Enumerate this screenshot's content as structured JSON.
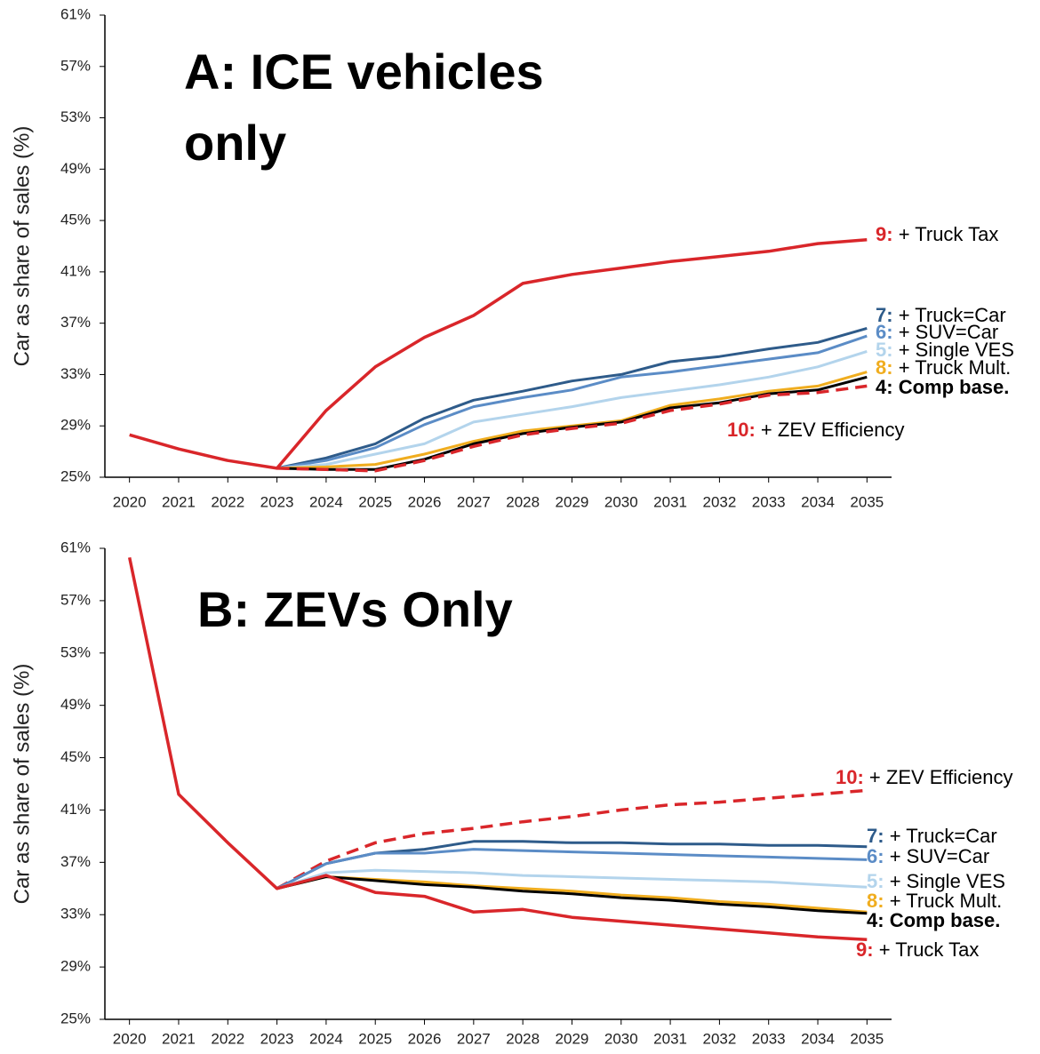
{
  "chart_data": [
    {
      "type": "line",
      "title": [
        "A: ICE vehicles",
        "only"
      ],
      "ylabel": "Car as share of sales (%)",
      "x": [
        2020,
        2021,
        2022,
        2023,
        2024,
        2025,
        2026,
        2027,
        2028,
        2029,
        2030,
        2031,
        2032,
        2033,
        2034,
        2035
      ],
      "xlim": [
        2019.5,
        2035.5
      ],
      "xticks": [
        2020,
        2021,
        2022,
        2023,
        2024,
        2025,
        2026,
        2027,
        2028,
        2029,
        2030,
        2031,
        2032,
        2033,
        2034,
        2035
      ],
      "ylim": [
        25,
        61
      ],
      "yticks": [
        {
          "value": 25,
          "label": "25%"
        },
        {
          "value": 29,
          "label": "29%"
        },
        {
          "value": 33,
          "label": "33%"
        },
        {
          "value": 37,
          "label": "37%"
        },
        {
          "value": 41,
          "label": "41%"
        },
        {
          "value": 45,
          "label": "45%"
        },
        {
          "value": 49,
          "label": "49%"
        },
        {
          "value": 53,
          "label": "53%"
        },
        {
          "value": 57,
          "label": "57%"
        },
        {
          "value": 61,
          "label": "61%"
        }
      ],
      "series": [
        {
          "number": "7:",
          "name": "+ Truck=Car",
          "color": "#2e5b8a",
          "values": [
            null,
            null,
            null,
            25.7,
            26.5,
            27.6,
            29.6,
            31.0,
            31.7,
            32.5,
            33.0,
            34.0,
            34.4,
            35.0,
            35.5,
            36.6
          ]
        },
        {
          "number": "6:",
          "name": "+ SUV=Car",
          "color": "#5b8cc6",
          "values": [
            null,
            null,
            null,
            25.7,
            26.3,
            27.3,
            29.1,
            30.5,
            31.2,
            31.8,
            32.8,
            33.2,
            33.7,
            34.2,
            34.7,
            36.0
          ]
        },
        {
          "number": "5:",
          "name": "+ Single VES",
          "color": "#b3d4ec",
          "values": [
            null,
            null,
            null,
            25.7,
            26.0,
            26.8,
            27.6,
            29.3,
            29.9,
            30.5,
            31.2,
            31.7,
            32.2,
            32.8,
            33.6,
            34.8
          ]
        },
        {
          "number": "8:",
          "name": "+ Truck Mult.",
          "color": "#f0ad1f",
          "values": [
            null,
            null,
            null,
            25.7,
            25.8,
            26.0,
            26.8,
            27.8,
            28.6,
            29.0,
            29.4,
            30.6,
            31.1,
            31.7,
            32.1,
            33.2
          ]
        },
        {
          "number": "4:",
          "name": "Comp base.",
          "color": "#000000",
          "bold": true,
          "values": [
            null,
            null,
            null,
            25.7,
            25.6,
            25.6,
            26.4,
            27.6,
            28.4,
            28.9,
            29.3,
            30.4,
            30.8,
            31.5,
            31.8,
            32.8
          ]
        },
        {
          "number": "10:",
          "name": "+ ZEV Efficiency",
          "color": "#d9262a",
          "dashed": true,
          "values": [
            null,
            null,
            null,
            25.7,
            25.6,
            25.5,
            26.3,
            27.4,
            28.3,
            28.8,
            29.2,
            30.2,
            30.7,
            31.4,
            31.6,
            32.1
          ]
        },
        {
          "number": "9:",
          "name": "+ Truck Tax",
          "color": "#d9262a",
          "values": [
            28.3,
            27.2,
            26.3,
            25.7,
            30.2,
            33.6,
            35.9,
            37.6,
            40.1,
            40.8,
            41.3,
            41.8,
            42.2,
            42.6,
            43.2,
            43.5
          ]
        }
      ]
    },
    {
      "type": "line",
      "title": [
        "B: ZEVs Only"
      ],
      "ylabel": "Car as share of sales (%)",
      "x": [
        2020,
        2021,
        2022,
        2023,
        2024,
        2025,
        2026,
        2027,
        2028,
        2029,
        2030,
        2031,
        2032,
        2033,
        2034,
        2035
      ],
      "xlim": [
        2019.5,
        2035.5
      ],
      "xticks": [
        2020,
        2021,
        2022,
        2023,
        2024,
        2025,
        2026,
        2027,
        2028,
        2029,
        2030,
        2031,
        2032,
        2033,
        2034,
        2035
      ],
      "ylim": [
        25,
        61
      ],
      "yticks": [
        {
          "value": 25,
          "label": "25%"
        },
        {
          "value": 29,
          "label": "29%"
        },
        {
          "value": 33,
          "label": "33%"
        },
        {
          "value": 37,
          "label": "37%"
        },
        {
          "value": 41,
          "label": "41%"
        },
        {
          "value": 45,
          "label": "45%"
        },
        {
          "value": 49,
          "label": "49%"
        },
        {
          "value": 53,
          "label": "53%"
        },
        {
          "value": 57,
          "label": "57%"
        },
        {
          "value": 61,
          "label": "61%"
        }
      ],
      "series": [
        {
          "number": "10:",
          "name": "+ ZEV Efficiency",
          "color": "#d9262a",
          "dashed": true,
          "values": [
            null,
            null,
            null,
            35.0,
            37.1,
            38.5,
            39.2,
            39.6,
            40.1,
            40.5,
            41.0,
            41.4,
            41.6,
            41.9,
            42.2,
            42.5
          ]
        },
        {
          "number": "7:",
          "name": "+ Truck=Car",
          "color": "#2e5b8a",
          "values": [
            null,
            null,
            null,
            35.0,
            36.9,
            37.7,
            38.0,
            38.6,
            38.6,
            38.5,
            38.5,
            38.4,
            38.4,
            38.3,
            38.3,
            38.2
          ]
        },
        {
          "number": "6:",
          "name": "+ SUV=Car",
          "color": "#5b8cc6",
          "values": [
            null,
            null,
            null,
            35.0,
            36.9,
            37.7,
            37.7,
            38.0,
            37.9,
            37.8,
            37.7,
            37.6,
            37.5,
            37.4,
            37.3,
            37.2
          ]
        },
        {
          "number": "5:",
          "name": "+ Single VES",
          "color": "#b3d4ec",
          "values": [
            null,
            null,
            null,
            35.0,
            36.2,
            36.4,
            36.3,
            36.2,
            36.0,
            35.9,
            35.8,
            35.7,
            35.6,
            35.5,
            35.3,
            35.1
          ]
        },
        {
          "number": "8:",
          "name": "+ Truck Mult.",
          "color": "#f0ad1f",
          "values": [
            null,
            null,
            null,
            35.0,
            35.9,
            35.7,
            35.5,
            35.2,
            35.0,
            34.8,
            34.5,
            34.3,
            34.0,
            33.8,
            33.5,
            33.2
          ]
        },
        {
          "number": "4:",
          "name": "Comp base.",
          "color": "#000000",
          "bold": true,
          "values": [
            null,
            null,
            null,
            35.0,
            35.9,
            35.6,
            35.3,
            35.1,
            34.8,
            34.6,
            34.3,
            34.1,
            33.8,
            33.6,
            33.3,
            33.1
          ]
        },
        {
          "number": "9:",
          "name": "+ Truck Tax",
          "color": "#d9262a",
          "values": [
            60.3,
            42.2,
            38.5,
            35.0,
            36.0,
            34.7,
            34.4,
            33.2,
            33.4,
            32.8,
            32.5,
            32.2,
            31.9,
            31.6,
            31.3,
            31.1
          ]
        }
      ]
    }
  ]
}
